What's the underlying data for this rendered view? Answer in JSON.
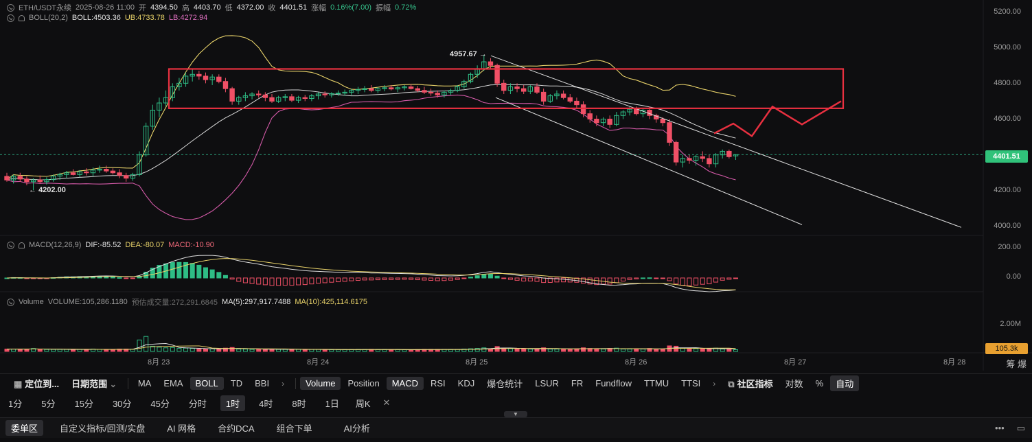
{
  "header": {
    "symbol": "ETH/USDT永续",
    "time": "2025-08-26 11:00",
    "open_label": "开",
    "open": "4394.50",
    "high_label": "高",
    "high": "4403.70",
    "low_label": "低",
    "low": "4372.00",
    "close_label": "收",
    "close": "4401.51",
    "change_label": "涨幅",
    "change": "0.16%(7.00)",
    "amp_label": "振幅",
    "amp": "0.72%"
  },
  "boll": {
    "name": "BOLL(20,2)",
    "boll": "BOLL:4503.36",
    "ub": "UB:4733.78",
    "lb": "LB:4272.94"
  },
  "macd": {
    "name": "MACD(12,26,9)",
    "dif": "DIF:-85.52",
    "dea": "DEA:-80.07",
    "macd": "MACD:-10.90"
  },
  "volume": {
    "name": "Volume",
    "vol": "VOLUME:105,286.1180",
    "est": "预估成交量:272,291.6845",
    "ma5": "MA(5):297,917.7488",
    "ma10": "MA(10):425,114.6175"
  },
  "price_axis": [
    "5200.00",
    "5000.00",
    "4800.00",
    "4600.00",
    "4400.00",
    "4200.00",
    "4000.00"
  ],
  "macd_axis": [
    "200.00",
    "0.00"
  ],
  "vol_axis": [
    "2.00M"
  ],
  "last_price": "4401.51",
  "last_volume": "105.3k",
  "annot_high": "4957.67",
  "annot_low": "4202.00",
  "x_labels": [
    "8月 23",
    "8月 24",
    "8月 25",
    "8月 26",
    "8月 27",
    "8月 28"
  ],
  "toolbar1": {
    "locate": "定位到...",
    "date_range": "日期范围",
    "main_inds": [
      "MA",
      "EMA",
      "BOLL",
      "TD",
      "BBI"
    ],
    "sub_inds": [
      "Volume",
      "Position",
      "MACD",
      "RSI",
      "KDJ",
      "爆仓统计",
      "LSUR",
      "FR",
      "Fundflow",
      "TTMU",
      "TTSI"
    ],
    "community": "社区指标",
    "log": "对数",
    "pct": "%",
    "auto": "自动"
  },
  "toolbar2": {
    "intervals": [
      "1分",
      "5分",
      "15分",
      "30分",
      "45分",
      "分时",
      "1时",
      "4时",
      "8时",
      "1日",
      "周K"
    ]
  },
  "toolbar3": {
    "items": [
      "委单区",
      "自定义指标/回测/实盘",
      "AI 网格",
      "合约DCA",
      "组合下单",
      "AI分析"
    ]
  },
  "chart_data": {
    "type": "candlestick",
    "interval": "1h",
    "x_axis": [
      "8月 23",
      "8月 24",
      "8月 25",
      "8月 26",
      "8月 27",
      "8月 28"
    ],
    "y_axis_range": [
      3980,
      5220
    ],
    "candles": [
      [
        4280,
        4300,
        4250,
        4260
      ],
      [
        4260,
        4290,
        4240,
        4280
      ],
      [
        4280,
        4300,
        4250,
        4265
      ],
      [
        4265,
        4280,
        4230,
        4250
      ],
      [
        4250,
        4270,
        4202,
        4260
      ],
      [
        4260,
        4285,
        4240,
        4250
      ],
      [
        4250,
        4275,
        4235,
        4262
      ],
      [
        4262,
        4290,
        4250,
        4282
      ],
      [
        4282,
        4300,
        4260,
        4290
      ],
      [
        4290,
        4310,
        4270,
        4300
      ],
      [
        4300,
        4320,
        4285,
        4290
      ],
      [
        4290,
        4315,
        4275,
        4305
      ],
      [
        4305,
        4325,
        4285,
        4300
      ],
      [
        4300,
        4330,
        4280,
        4315
      ],
      [
        4315,
        4340,
        4300,
        4320
      ],
      [
        4320,
        4340,
        4300,
        4310
      ],
      [
        4310,
        4325,
        4290,
        4300
      ],
      [
        4300,
        4320,
        4270,
        4285
      ],
      [
        4285,
        4300,
        4250,
        4270
      ],
      [
        4270,
        4300,
        4255,
        4290
      ],
      [
        4290,
        4420,
        4280,
        4400
      ],
      [
        4400,
        4580,
        4390,
        4560
      ],
      [
        4560,
        4680,
        4540,
        4650
      ],
      [
        4650,
        4720,
        4610,
        4690
      ],
      [
        4690,
        4760,
        4670,
        4720
      ],
      [
        4720,
        4800,
        4700,
        4780
      ],
      [
        4780,
        4830,
        4760,
        4800
      ],
      [
        4800,
        4860,
        4780,
        4840
      ],
      [
        4840,
        4880,
        4810,
        4850
      ],
      [
        4850,
        4870,
        4820,
        4840
      ],
      [
        4840,
        4860,
        4800,
        4820
      ],
      [
        4820,
        4850,
        4790,
        4835
      ],
      [
        4835,
        4850,
        4800,
        4810
      ],
      [
        4810,
        4830,
        4750,
        4770
      ],
      [
        4770,
        4780,
        4680,
        4700
      ],
      [
        4700,
        4730,
        4680,
        4720
      ],
      [
        4720,
        4750,
        4700,
        4730
      ],
      [
        4730,
        4750,
        4710,
        4740
      ],
      [
        4740,
        4760,
        4720,
        4735
      ],
      [
        4735,
        4750,
        4700,
        4720
      ],
      [
        4720,
        4740,
        4690,
        4700
      ],
      [
        4700,
        4730,
        4690,
        4720
      ],
      [
        4720,
        4740,
        4700,
        4725
      ],
      [
        4725,
        4740,
        4695,
        4705
      ],
      [
        4705,
        4730,
        4690,
        4720
      ],
      [
        4720,
        4735,
        4700,
        4715
      ],
      [
        4715,
        4740,
        4700,
        4730
      ],
      [
        4730,
        4750,
        4710,
        4740
      ],
      [
        4740,
        4755,
        4720,
        4735
      ],
      [
        4735,
        4750,
        4720,
        4742
      ],
      [
        4742,
        4760,
        4730,
        4745
      ],
      [
        4745,
        4765,
        4730,
        4750
      ],
      [
        4750,
        4770,
        4735,
        4760
      ],
      [
        4760,
        4780,
        4740,
        4765
      ],
      [
        4765,
        4785,
        4750,
        4770
      ],
      [
        4770,
        4790,
        4750,
        4760
      ],
      [
        4760,
        4780,
        4745,
        4770
      ],
      [
        4770,
        4790,
        4755,
        4775
      ],
      [
        4775,
        4790,
        4760,
        4768
      ],
      [
        4768,
        4785,
        4750,
        4775
      ],
      [
        4775,
        4790,
        4760,
        4780
      ],
      [
        4780,
        4795,
        4765,
        4770
      ],
      [
        4770,
        4785,
        4750,
        4760
      ],
      [
        4760,
        4780,
        4740,
        4750
      ],
      [
        4750,
        4770,
        4730,
        4745
      ],
      [
        4745,
        4760,
        4720,
        4735
      ],
      [
        4735,
        4760,
        4720,
        4750
      ],
      [
        4750,
        4770,
        4735,
        4760
      ],
      [
        4760,
        4790,
        4750,
        4780
      ],
      [
        4780,
        4820,
        4770,
        4810
      ],
      [
        4810,
        4860,
        4800,
        4850
      ],
      [
        4850,
        4900,
        4830,
        4880
      ],
      [
        4880,
        4958,
        4870,
        4920
      ],
      [
        4920,
        4940,
        4880,
        4900
      ],
      [
        4900,
        4910,
        4780,
        4800
      ],
      [
        4800,
        4820,
        4740,
        4760
      ],
      [
        4760,
        4800,
        4740,
        4780
      ],
      [
        4780,
        4800,
        4750,
        4770
      ],
      [
        4770,
        4790,
        4740,
        4755
      ],
      [
        4755,
        4790,
        4740,
        4780
      ],
      [
        4780,
        4800,
        4740,
        4750
      ],
      [
        4750,
        4770,
        4680,
        4700
      ],
      [
        4700,
        4740,
        4690,
        4730
      ],
      [
        4730,
        4760,
        4710,
        4740
      ],
      [
        4740,
        4760,
        4710,
        4720
      ],
      [
        4720,
        4740,
        4690,
        4700
      ],
      [
        4700,
        4720,
        4660,
        4680
      ],
      [
        4680,
        4700,
        4610,
        4630
      ],
      [
        4630,
        4650,
        4580,
        4600
      ],
      [
        4600,
        4620,
        4560,
        4580
      ],
      [
        4580,
        4610,
        4560,
        4600
      ],
      [
        4600,
        4620,
        4550,
        4570
      ],
      [
        4570,
        4640,
        4560,
        4620
      ],
      [
        4620,
        4650,
        4600,
        4640
      ],
      [
        4640,
        4670,
        4620,
        4655
      ],
      [
        4655,
        4670,
        4620,
        4630
      ],
      [
        4630,
        4660,
        4610,
        4650
      ],
      [
        4650,
        4670,
        4600,
        4620
      ],
      [
        4620,
        4630,
        4580,
        4600
      ],
      [
        4600,
        4610,
        4560,
        4580
      ],
      [
        4580,
        4600,
        4450,
        4470
      ],
      [
        4470,
        4480,
        4340,
        4360
      ],
      [
        4360,
        4400,
        4330,
        4380
      ],
      [
        4380,
        4400,
        4350,
        4370
      ],
      [
        4370,
        4400,
        4340,
        4390
      ],
      [
        4390,
        4420,
        4360,
        4380
      ],
      [
        4380,
        4400,
        4330,
        4350
      ],
      [
        4350,
        4410,
        4330,
        4400
      ],
      [
        4400,
        4430,
        4380,
        4420
      ],
      [
        4420,
        4430,
        4380,
        4390
      ],
      [
        4394.5,
        4403.7,
        4372,
        4401.51
      ]
    ],
    "annotations": {
      "high": 4957.67,
      "low": 4202.0,
      "last": 4401.51
    },
    "macd_axis": [
      0,
      200
    ],
    "volume_axis": [
      "2.00M"
    ]
  }
}
